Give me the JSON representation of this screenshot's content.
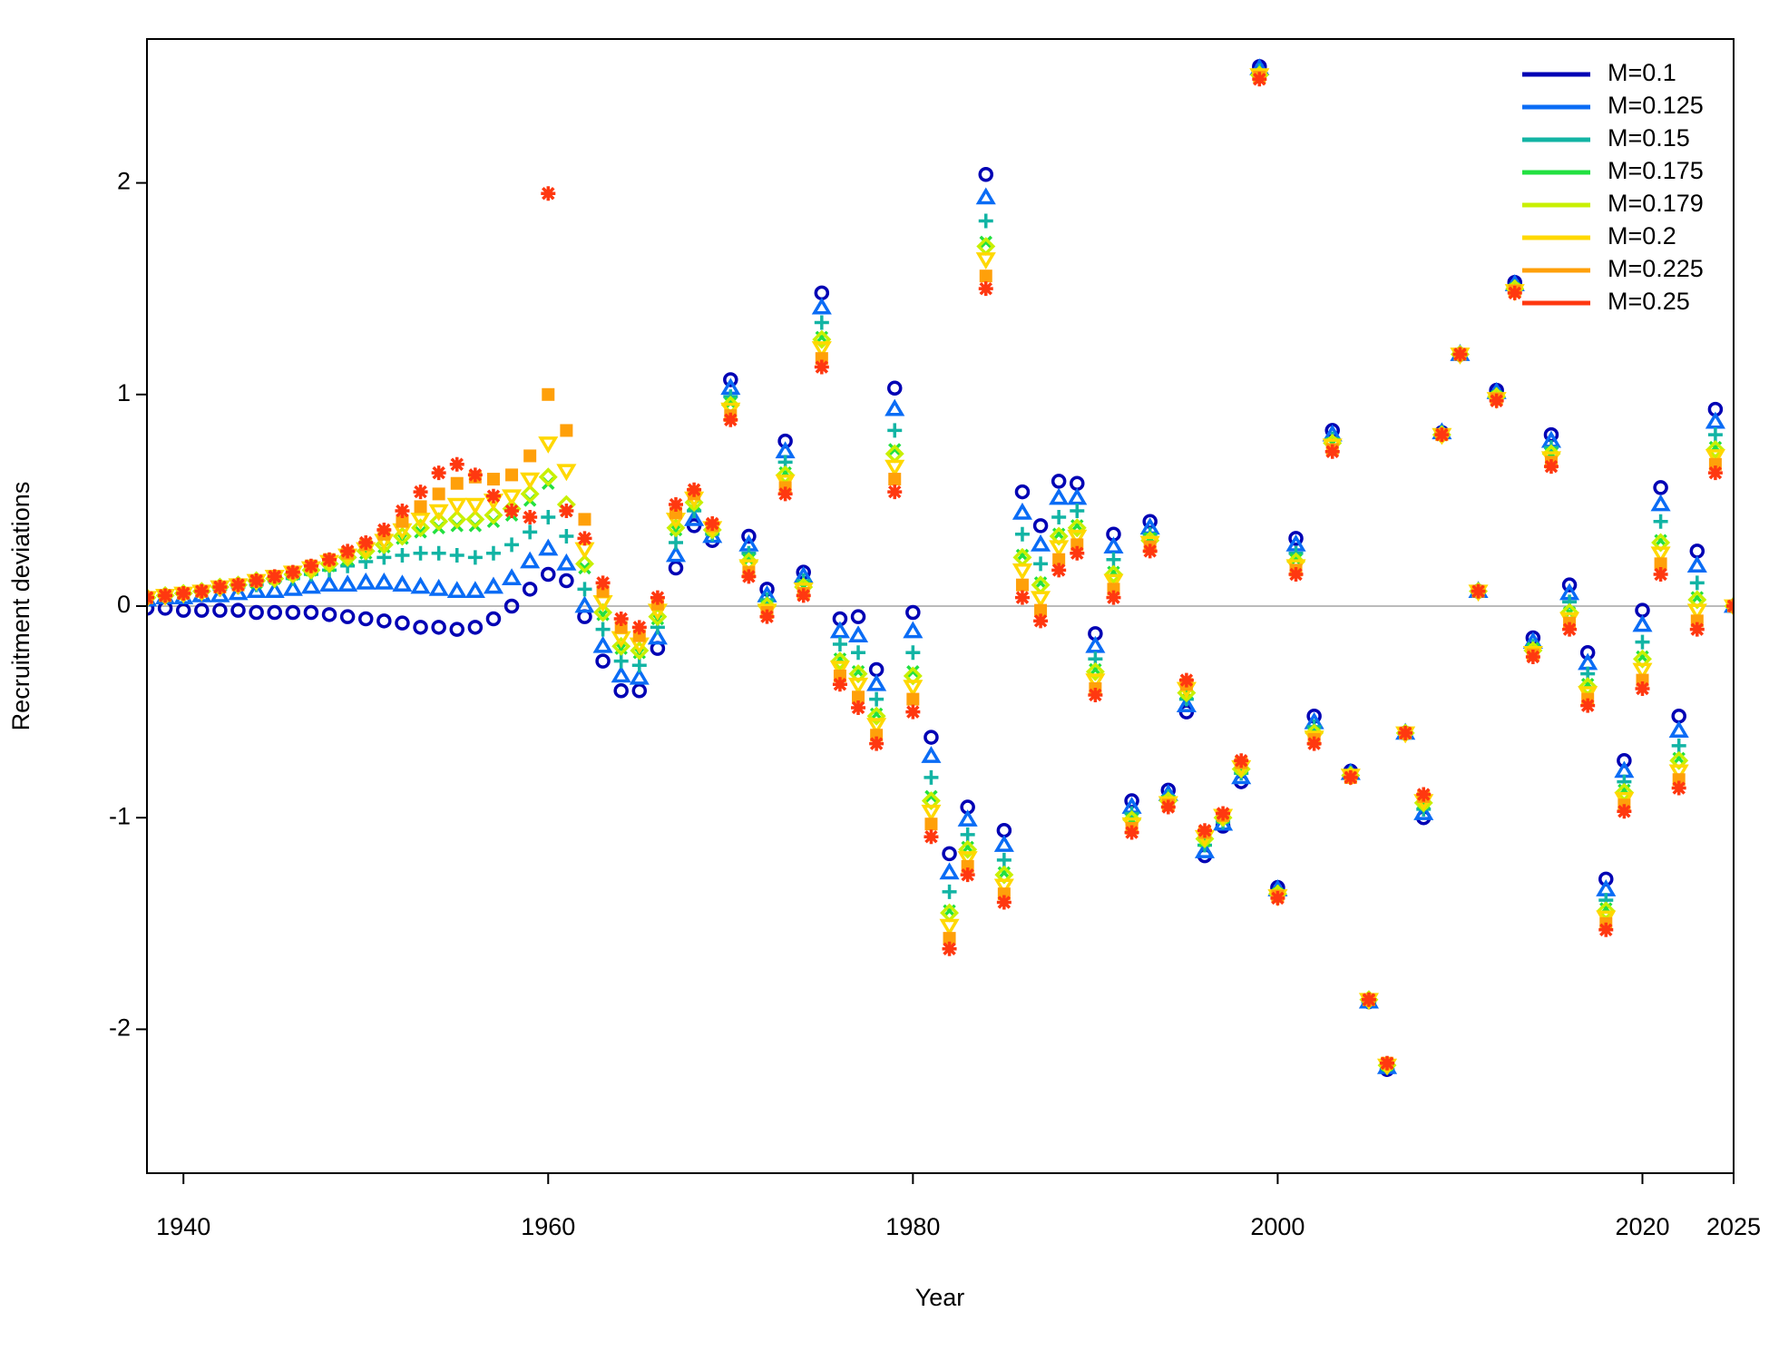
{
  "chart_data": {
    "type": "scatter",
    "x_label": "Year",
    "y_label": "Recruitment deviations",
    "x": [
      1938,
      1939,
      1940,
      1941,
      1942,
      1943,
      1944,
      1945,
      1946,
      1947,
      1948,
      1949,
      1950,
      1951,
      1952,
      1953,
      1954,
      1955,
      1956,
      1957,
      1958,
      1959,
      1960,
      1961,
      1962,
      1963,
      1964,
      1965,
      1966,
      1967,
      1968,
      1969,
      1970,
      1971,
      1972,
      1973,
      1974,
      1975,
      1976,
      1977,
      1978,
      1979,
      1980,
      1981,
      1982,
      1983,
      1984,
      1985,
      1986,
      1987,
      1988,
      1989,
      1990,
      1991,
      1992,
      1993,
      1994,
      1995,
      1996,
      1997,
      1998,
      1999,
      2000,
      2001,
      2002,
      2003,
      2004,
      2005,
      2006,
      2007,
      2008,
      2009,
      2010,
      2011,
      2012,
      2013,
      2014,
      2015,
      2016,
      2017,
      2018,
      2019,
      2020,
      2021,
      2022,
      2023,
      2024,
      2025
    ],
    "xlim": [
      1938,
      2025
    ],
    "xticks": [
      1940,
      1960,
      1980,
      2000,
      2020,
      2025
    ],
    "ylim": [
      -2.68,
      2.68
    ],
    "yticks": [
      -2,
      -1,
      0,
      1,
      2
    ],
    "reference_line": 0,
    "legend_position": "topright",
    "series": [
      {
        "name": "M=0.1",
        "color": "#0000b4",
        "marker": "circle",
        "values": [
          -0.01,
          -0.01,
          -0.02,
          -0.02,
          -0.02,
          -0.02,
          -0.03,
          -0.03,
          -0.03,
          -0.03,
          -0.04,
          -0.05,
          -0.06,
          -0.07,
          -0.08,
          -0.1,
          -0.1,
          -0.11,
          -0.1,
          -0.06,
          0.0,
          0.08,
          0.15,
          0.12,
          -0.05,
          -0.26,
          -0.4,
          -0.4,
          -0.2,
          0.18,
          0.38,
          0.31,
          1.07,
          0.33,
          0.08,
          0.78,
          0.16,
          1.48,
          -0.06,
          -0.05,
          -0.3,
          1.03,
          -0.03,
          -0.62,
          -1.17,
          -0.95,
          2.04,
          -1.06,
          0.54,
          0.38,
          0.59,
          0.58,
          -0.13,
          0.34,
          -0.92,
          0.4,
          -0.87,
          -0.5,
          -1.18,
          -1.04,
          -0.83,
          2.55,
          -1.33,
          0.32,
          -0.52,
          0.83,
          -0.78,
          -1.87,
          -2.19,
          -0.6,
          -1.0,
          0.82,
          1.19,
          0.07,
          1.02,
          1.53,
          -0.15,
          0.81,
          0.1,
          -0.22,
          -1.29,
          -0.73,
          -0.02,
          0.56,
          -0.52,
          0.26,
          0.93,
          0
        ]
      },
      {
        "name": "M=0.125",
        "color": "#0a6cf5",
        "marker": "triangle",
        "values": [
          0.03,
          0.04,
          0.04,
          0.05,
          0.05,
          0.06,
          0.07,
          0.07,
          0.08,
          0.09,
          0.1,
          0.1,
          0.11,
          0.11,
          0.1,
          0.09,
          0.08,
          0.07,
          0.07,
          0.09,
          0.13,
          0.21,
          0.27,
          0.2,
          0.0,
          -0.19,
          -0.33,
          -0.34,
          -0.15,
          0.24,
          0.41,
          0.33,
          1.03,
          0.29,
          0.05,
          0.73,
          0.14,
          1.41,
          -0.12,
          -0.14,
          -0.37,
          0.93,
          -0.12,
          -0.71,
          -1.26,
          -1.01,
          1.93,
          -1.13,
          0.44,
          0.29,
          0.51,
          0.51,
          -0.19,
          0.28,
          -0.95,
          0.37,
          -0.89,
          -0.47,
          -1.16,
          -1.03,
          -0.81,
          2.54,
          -1.34,
          0.29,
          -0.55,
          0.81,
          -0.79,
          -1.87,
          -2.18,
          -0.6,
          -0.98,
          0.82,
          1.19,
          0.07,
          1.01,
          1.52,
          -0.17,
          0.78,
          0.06,
          -0.27,
          -1.34,
          -0.78,
          -0.09,
          0.48,
          -0.59,
          0.19,
          0.87,
          0
        ]
      },
      {
        "name": "M=0.15",
        "color": "#12b4a4",
        "marker": "plus",
        "values": [
          0.04,
          0.05,
          0.06,
          0.07,
          0.08,
          0.09,
          0.1,
          0.12,
          0.13,
          0.15,
          0.17,
          0.19,
          0.21,
          0.23,
          0.24,
          0.25,
          0.25,
          0.24,
          0.23,
          0.25,
          0.29,
          0.35,
          0.42,
          0.33,
          0.08,
          -0.11,
          -0.26,
          -0.28,
          -0.1,
          0.3,
          0.45,
          0.34,
          0.99,
          0.25,
          0.03,
          0.68,
          0.12,
          1.34,
          -0.18,
          -0.22,
          -0.44,
          0.83,
          -0.22,
          -0.81,
          -1.35,
          -1.08,
          1.82,
          -1.2,
          0.34,
          0.2,
          0.42,
          0.45,
          -0.25,
          0.22,
          -0.98,
          0.34,
          -0.9,
          -0.44,
          -1.13,
          -1.02,
          -0.79,
          2.53,
          -1.35,
          0.25,
          -0.57,
          0.79,
          -0.79,
          -1.87,
          -2.18,
          -0.6,
          -0.96,
          0.82,
          1.19,
          0.07,
          1.0,
          1.51,
          -0.19,
          0.75,
          0.02,
          -0.32,
          -1.39,
          -0.83,
          -0.17,
          0.4,
          -0.66,
          0.11,
          0.81,
          0
        ]
      },
      {
        "name": "M=0.175",
        "color": "#22e040",
        "marker": "x",
        "values": [
          0.04,
          0.05,
          0.06,
          0.07,
          0.09,
          0.1,
          0.11,
          0.13,
          0.15,
          0.17,
          0.19,
          0.22,
          0.25,
          0.28,
          0.32,
          0.35,
          0.37,
          0.38,
          0.38,
          0.4,
          0.43,
          0.5,
          0.58,
          0.45,
          0.18,
          -0.04,
          -0.2,
          -0.22,
          -0.06,
          0.36,
          0.48,
          0.36,
          0.96,
          0.22,
          0.0,
          0.63,
          0.09,
          1.27,
          -0.25,
          -0.31,
          -0.51,
          0.74,
          -0.31,
          -0.9,
          -1.44,
          -1.14,
          1.72,
          -1.26,
          0.24,
          0.11,
          0.34,
          0.38,
          -0.3,
          0.16,
          -1.01,
          0.32,
          -0.92,
          -0.41,
          -1.11,
          -1.0,
          -0.77,
          2.51,
          -1.36,
          0.22,
          -0.6,
          0.77,
          -0.8,
          -1.86,
          -2.17,
          -0.6,
          -0.93,
          0.81,
          1.19,
          0.07,
          0.99,
          1.5,
          -0.2,
          0.72,
          -0.03,
          -0.37,
          -1.43,
          -0.87,
          -0.24,
          0.31,
          -0.72,
          0.04,
          0.75,
          0
        ]
      },
      {
        "name": "M=0.179",
        "color": "#c8f000",
        "marker": "diamond",
        "values": [
          0.04,
          0.05,
          0.06,
          0.07,
          0.09,
          0.1,
          0.12,
          0.13,
          0.15,
          0.17,
          0.2,
          0.23,
          0.26,
          0.29,
          0.33,
          0.37,
          0.4,
          0.41,
          0.41,
          0.43,
          0.46,
          0.53,
          0.61,
          0.48,
          0.2,
          -0.03,
          -0.19,
          -0.21,
          -0.05,
          0.37,
          0.49,
          0.36,
          0.95,
          0.21,
          0.0,
          0.62,
          0.09,
          1.26,
          -0.26,
          -0.32,
          -0.52,
          0.72,
          -0.33,
          -0.92,
          -1.45,
          -1.15,
          1.7,
          -1.27,
          0.23,
          0.1,
          0.33,
          0.37,
          -0.31,
          0.15,
          -1.01,
          0.31,
          -0.92,
          -0.41,
          -1.1,
          -1.0,
          -0.77,
          2.51,
          -1.36,
          0.21,
          -0.6,
          0.77,
          -0.8,
          -1.86,
          -2.17,
          -0.6,
          -0.93,
          0.81,
          1.19,
          0.07,
          0.99,
          1.5,
          -0.21,
          0.72,
          -0.03,
          -0.38,
          -1.44,
          -0.88,
          -0.25,
          0.3,
          -0.73,
          0.03,
          0.74,
          0
        ]
      },
      {
        "name": "M=0.2",
        "color": "#ffd800",
        "marker": "triangle-down",
        "values": [
          0.04,
          0.05,
          0.06,
          0.07,
          0.09,
          0.1,
          0.12,
          0.14,
          0.16,
          0.18,
          0.21,
          0.24,
          0.27,
          0.31,
          0.36,
          0.41,
          0.45,
          0.48,
          0.48,
          0.5,
          0.52,
          0.6,
          0.77,
          0.64,
          0.27,
          0.02,
          -0.15,
          -0.18,
          -0.02,
          0.41,
          0.51,
          0.37,
          0.93,
          0.19,
          -0.02,
          0.59,
          0.08,
          1.22,
          -0.29,
          -0.37,
          -0.56,
          0.66,
          -0.38,
          -0.97,
          -1.51,
          -1.19,
          1.64,
          -1.32,
          0.17,
          0.04,
          0.28,
          0.33,
          -0.35,
          0.12,
          -1.03,
          0.3,
          -0.93,
          -0.39,
          -1.09,
          -0.99,
          -0.76,
          2.51,
          -1.37,
          0.19,
          -0.62,
          0.76,
          -0.8,
          -1.86,
          -2.17,
          -0.6,
          -0.92,
          0.81,
          1.19,
          0.07,
          0.98,
          1.49,
          -0.22,
          0.7,
          -0.06,
          -0.41,
          -1.47,
          -0.91,
          -0.3,
          0.25,
          -0.78,
          -0.02,
          0.71,
          0
        ]
      },
      {
        "name": "M=0.225",
        "color": "#ffa00a",
        "marker": "square",
        "values": [
          0.04,
          0.05,
          0.06,
          0.07,
          0.09,
          0.1,
          0.12,
          0.14,
          0.16,
          0.19,
          0.22,
          0.25,
          0.29,
          0.34,
          0.4,
          0.47,
          0.53,
          0.58,
          0.61,
          0.6,
          0.62,
          0.71,
          1.0,
          0.83,
          0.41,
          0.07,
          -0.1,
          -0.14,
          0.01,
          0.44,
          0.53,
          0.38,
          0.9,
          0.16,
          -0.03,
          0.56,
          0.06,
          1.17,
          -0.33,
          -0.43,
          -0.61,
          0.6,
          -0.44,
          -1.03,
          -1.57,
          -1.23,
          1.56,
          -1.36,
          0.1,
          -0.02,
          0.22,
          0.29,
          -0.39,
          0.08,
          -1.05,
          0.28,
          -0.94,
          -0.37,
          -1.07,
          -0.99,
          -0.74,
          2.5,
          -1.37,
          0.17,
          -0.63,
          0.74,
          -0.81,
          -1.86,
          -2.16,
          -0.6,
          -0.9,
          0.81,
          1.19,
          0.07,
          0.98,
          1.49,
          -0.23,
          0.68,
          -0.08,
          -0.44,
          -1.5,
          -0.94,
          -0.35,
          0.2,
          -0.82,
          -0.07,
          0.67,
          0
        ]
      },
      {
        "name": "M=0.25",
        "color": "#ff3810",
        "marker": "asterisk",
        "values": [
          0.04,
          0.05,
          0.06,
          0.07,
          0.09,
          0.1,
          0.12,
          0.14,
          0.16,
          0.19,
          0.22,
          0.26,
          0.3,
          0.36,
          0.45,
          0.54,
          0.63,
          0.67,
          0.62,
          0.52,
          0.45,
          0.42,
          1.95,
          0.45,
          0.32,
          0.11,
          -0.06,
          -0.1,
          0.04,
          0.48,
          0.55,
          0.39,
          0.88,
          0.14,
          -0.05,
          0.53,
          0.05,
          1.13,
          -0.37,
          -0.48,
          -0.65,
          0.54,
          -0.5,
          -1.09,
          -1.62,
          -1.27,
          1.5,
          -1.4,
          0.04,
          -0.07,
          0.17,
          0.25,
          -0.42,
          0.04,
          -1.07,
          0.26,
          -0.95,
          -0.35,
          -1.06,
          -0.98,
          -0.73,
          2.49,
          -1.38,
          0.15,
          -0.65,
          0.73,
          -0.81,
          -1.86,
          -2.16,
          -0.6,
          -0.89,
          0.81,
          1.19,
          0.07,
          0.97,
          1.48,
          -0.24,
          0.66,
          -0.11,
          -0.47,
          -1.53,
          -0.97,
          -0.39,
          0.15,
          -0.86,
          -0.11,
          0.63,
          0
        ]
      }
    ]
  }
}
